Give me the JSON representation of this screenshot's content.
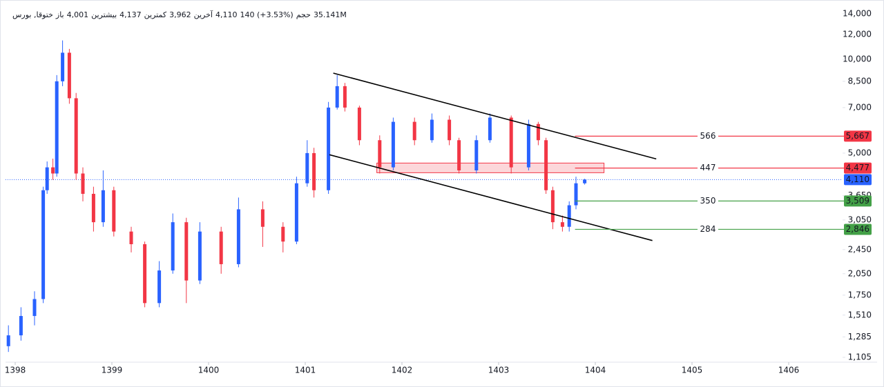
{
  "chart_data": {
    "type": "candlestick",
    "header": {
      "symbol": "ختوقا, بورس",
      "stats": [
        {
          "name": "باز",
          "value": 4001,
          "label": "4,001"
        },
        {
          "name": "بیشترین",
          "value": 4137,
          "label": "4,137"
        },
        {
          "name": "کمترین",
          "value": 3962,
          "label": "3,962"
        },
        {
          "name": "آخرین",
          "value": 4110,
          "label": "4,110"
        }
      ],
      "change": "140 (+3.53%)",
      "volume_name": "حجم",
      "volume": "35.141M"
    },
    "x": [
      1397.93,
      1398.06,
      1398.2,
      1398.29,
      1398.33,
      1398.39,
      1398.43,
      1398.49,
      1398.56,
      1398.63,
      1398.7,
      1398.81,
      1398.91,
      1399.02,
      1399.2,
      1399.34,
      1399.49,
      1399.63,
      1399.77,
      1399.91,
      1400.13,
      1400.31,
      1400.56,
      1400.77,
      1400.91,
      1401.02,
      1401.09,
      1401.24,
      1401.33,
      1401.41,
      1401.56,
      1401.77,
      1401.91,
      1402.13,
      1402.31,
      1402.49,
      1402.59,
      1402.77,
      1402.91,
      1403.13,
      1403.31,
      1403.41,
      1403.49,
      1403.56,
      1403.66,
      1403.73,
      1403.8,
      1403.89
    ],
    "open": [
      1200,
      1300,
      1500,
      1700,
      3800,
      4500,
      4300,
      8500,
      10500,
      7500,
      4300,
      3700,
      3000,
      3800,
      2800,
      2550,
      1650,
      2100,
      3000,
      1950,
      2800,
      2200,
      3300,
      2900,
      2600,
      4000,
      5000,
      3800,
      7000,
      8200,
      7000,
      5500,
      4500,
      6300,
      5500,
      6400,
      5500,
      4400,
      5500,
      6500,
      4500,
      6200,
      5500,
      3800,
      3000,
      2900,
      3400,
      4000
    ],
    "high": [
      1400,
      1600,
      1800,
      3900,
      4700,
      4800,
      8900,
      11500,
      10800,
      7800,
      4500,
      3900,
      4400,
      3900,
      2900,
      2600,
      2250,
      3200,
      3100,
      3000,
      2900,
      3600,
      3500,
      3000,
      4200,
      5500,
      5200,
      7300,
      8900,
      8400,
      7100,
      5700,
      6500,
      6500,
      6700,
      6600,
      5600,
      5700,
      6700,
      6600,
      6400,
      6300,
      5600,
      3900,
      3150,
      3500,
      4200,
      4137
    ],
    "low": [
      1150,
      1250,
      1400,
      1650,
      3700,
      4100,
      4200,
      8200,
      7200,
      4100,
      3500,
      2800,
      2900,
      2700,
      2400,
      1600,
      1600,
      2050,
      1650,
      1900,
      2050,
      2150,
      2500,
      2400,
      2550,
      3900,
      3600,
      3700,
      6900,
      6800,
      5300,
      4300,
      4400,
      5300,
      5400,
      5300,
      4300,
      4300,
      5400,
      4300,
      4400,
      5300,
      3700,
      2850,
      2800,
      2800,
      3300,
      3962
    ],
    "close": [
      1300,
      1500,
      1700,
      3800,
      4500,
      4300,
      8500,
      10500,
      7500,
      4300,
      3700,
      3000,
      3800,
      2800,
      2550,
      1650,
      2100,
      3000,
      1950,
      2800,
      2200,
      3300,
      2900,
      2600,
      4000,
      5000,
      3800,
      7000,
      8200,
      7000,
      5500,
      4500,
      6300,
      5500,
      6400,
      5500,
      4400,
      5500,
      6500,
      4500,
      6200,
      5500,
      3800,
      3000,
      2900,
      3400,
      4000,
      4110
    ],
    "up_color": "#2962ff",
    "down_color": "#f23645",
    "log_scale": true,
    "grid": false,
    "xlim": [
      1397.9,
      1406.55
    ],
    "xticks": [
      1398,
      1399,
      1400,
      1401,
      1402,
      1403,
      1404,
      1405,
      1406
    ],
    "ylim": [
      1105,
      14000
    ],
    "yticks": [
      {
        "value": 1105,
        "label": "1,105"
      },
      {
        "value": 1285,
        "label": "1,285"
      },
      {
        "value": 1510,
        "label": "1,510"
      },
      {
        "value": 1750,
        "label": "1,750"
      },
      {
        "value": 2050,
        "label": "2,050"
      },
      {
        "value": 2450,
        "label": "2,450"
      },
      {
        "value": 3050,
        "label": "3,050"
      },
      {
        "value": 3650,
        "label": "3,650"
      },
      {
        "value": 5000,
        "label": "5,000"
      },
      {
        "value": 7000,
        "label": "7,000"
      },
      {
        "value": 8500,
        "label": "8,500"
      },
      {
        "value": 10000,
        "label": "10,000"
      },
      {
        "value": 12000,
        "label": "12,000"
      },
      {
        "value": 14000,
        "label": "14,000"
      }
    ],
    "last_price": {
      "value": 4110,
      "label": "4,110",
      "color": "#2962ff"
    },
    "levels": [
      {
        "value": 5667,
        "value_label": "5,667",
        "text": "566",
        "color": "#f23645",
        "start": 1403.79
      },
      {
        "value": 4477,
        "value_label": "4,477",
        "text": "447",
        "color": "#f23645",
        "start": 1403.79
      },
      {
        "value": 3509,
        "value_label": "3,509",
        "text": "350",
        "color": "#43a047",
        "start": 1403.79
      },
      {
        "value": 2846,
        "value_label": "2,846",
        "text": "284",
        "color": "#43a047",
        "start": 1403.79
      }
    ],
    "trend_lines": [
      {
        "x": [
          1401.29,
          1404.63
        ],
        "y": [
          9030,
          4790
        ]
      },
      {
        "x": [
          1401.25,
          1404.59
        ],
        "y": [
          4940,
          2620
        ]
      }
    ],
    "zone": {
      "x": [
        1401.74,
        1404.09
      ],
      "y": [
        4325,
        4645
      ]
    }
  }
}
